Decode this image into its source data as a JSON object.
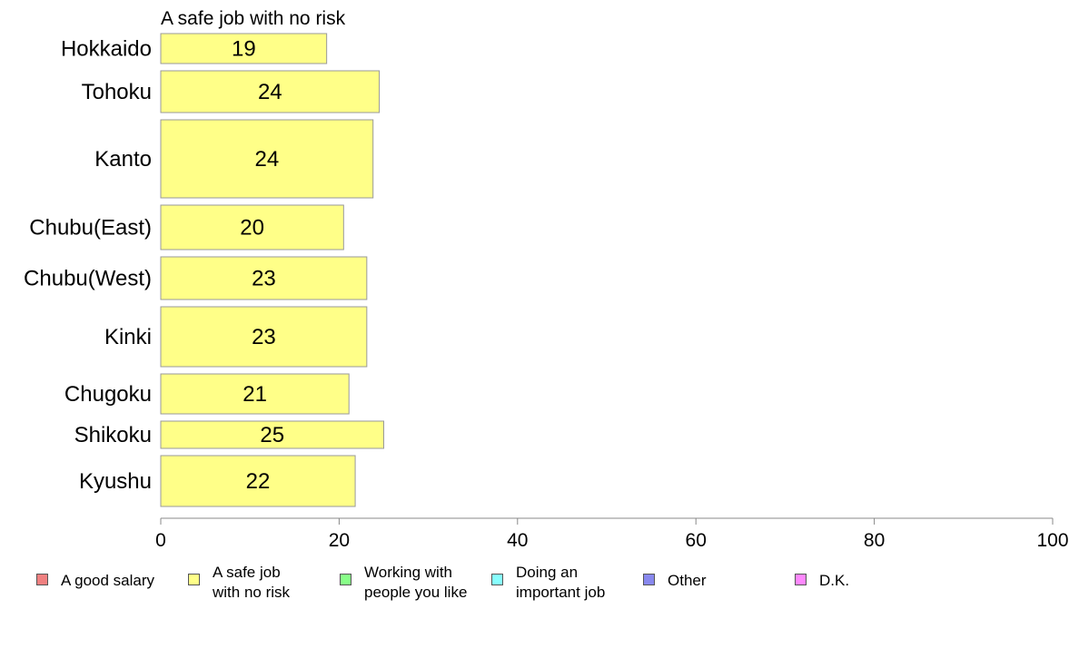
{
  "chart_data": {
    "type": "bar",
    "orientation": "horizontal",
    "title": "A safe job with no risk",
    "categories": [
      "Hokkaido",
      "Tohoku",
      "Kanto",
      "Chubu(East)",
      "Chubu(West)",
      "Kinki",
      "Chugoku",
      "Shikoku",
      "Kyushu"
    ],
    "values": [
      18.6,
      24.5,
      23.8,
      20.5,
      23.1,
      23.1,
      21.1,
      25.0,
      21.8
    ],
    "value_labels": [
      "19",
      "24",
      "24",
      "20",
      "23",
      "23",
      "21",
      "25",
      "22"
    ],
    "xlim": [
      0,
      100
    ],
    "xticks": [
      "0",
      "20",
      "40",
      "60",
      "80",
      "100"
    ],
    "bar_color": "#ffff88",
    "bar_border_color": "#999999",
    "grid": false,
    "legend_placement": "bottom",
    "legend": [
      {
        "label": "A good salary",
        "color": "#f08080"
      },
      {
        "label": "A safe job\nwith no risk",
        "color": "#ffff88"
      },
      {
        "label": "Working with\npeople you like",
        "color": "#88ff88"
      },
      {
        "label": "Doing an\nimportant job",
        "color": "#88ffff"
      },
      {
        "label": "Other",
        "color": "#8888ee"
      },
      {
        "label": "D.K.",
        "color": "#ff88ff"
      }
    ]
  }
}
